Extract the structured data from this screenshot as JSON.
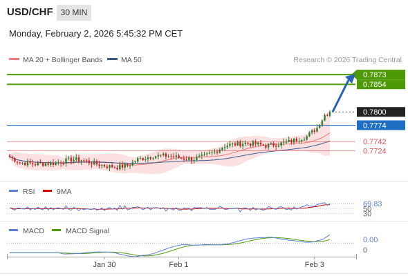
{
  "header": {
    "symbol": "USD/CHF",
    "timeframe": "30 MIN",
    "datetime": "Monday, February 2, 2026 5:45:32 PM CET"
  },
  "legend": {
    "ma20": "MA 20 + Bollinger Bands",
    "ma50": "MA 50",
    "copyright": "Research © 2026 Trading Central"
  },
  "colors": {
    "resistance": "#4e9a06",
    "current": "#222222",
    "pivot": "#1f6fc5",
    "support": "#e05050",
    "ma20": "#f07878",
    "ma50": "#3a5a8c",
    "candle_up": "#2e7d32",
    "candle_down": "#c62828",
    "rsi": "#5b7fd6",
    "rsi_ma": "#d00000",
    "macd": "#5b7fd6",
    "macd_signal": "#4e9a06",
    "arrow": "#2a62b8"
  },
  "chart_data": [
    {
      "type": "candlestick",
      "panel": "price",
      "ylim": [
        0.7668,
        0.7888
      ],
      "levels": [
        {
          "label": "0.7873",
          "value": 0.7873,
          "kind": "resistance"
        },
        {
          "label": "0.7854",
          "value": 0.7854,
          "kind": "resistance"
        },
        {
          "label": "0.7800",
          "value": 0.78,
          "kind": "current"
        },
        {
          "label": "0.7774",
          "value": 0.7774,
          "kind": "pivot"
        },
        {
          "label": "0.7742",
          "value": 0.7742,
          "kind": "support"
        },
        {
          "label": "0.7724",
          "value": 0.7724,
          "kind": "support"
        }
      ],
      "close_anchors": [
        [
          0,
          0.7712
        ],
        [
          4,
          0.7701
        ],
        [
          10,
          0.7698
        ],
        [
          18,
          0.77
        ],
        [
          24,
          0.7707
        ],
        [
          28,
          0.7706
        ],
        [
          33,
          0.7699
        ],
        [
          38,
          0.7694
        ],
        [
          42,
          0.7692
        ],
        [
          46,
          0.7695
        ],
        [
          50,
          0.7707
        ],
        [
          56,
          0.7714
        ],
        [
          62,
          0.7714
        ],
        [
          68,
          0.7709
        ],
        [
          72,
          0.7708
        ],
        [
          76,
          0.7713
        ],
        [
          80,
          0.7722
        ],
        [
          84,
          0.7734
        ],
        [
          88,
          0.7737
        ],
        [
          92,
          0.7739
        ],
        [
          96,
          0.7737
        ],
        [
          100,
          0.7734
        ],
        [
          104,
          0.7737
        ],
        [
          108,
          0.774
        ],
        [
          112,
          0.7746
        ],
        [
          116,
          0.7752
        ],
        [
          120,
          0.7769
        ],
        [
          123,
          0.7794
        ],
        [
          125,
          0.78
        ]
      ],
      "forecast": {
        "from": 0.78,
        "to": 0.7873
      }
    },
    {
      "type": "line",
      "panel": "rsi",
      "series": [
        {
          "name": "RSI"
        },
        {
          "name": "9MA"
        }
      ],
      "reference": {
        "label": "69.83",
        "value": 69.83
      },
      "levels": [
        {
          "label": "50",
          "value": 50
        },
        {
          "label": "30",
          "value": 30
        }
      ],
      "ylim": [
        20,
        90
      ]
    },
    {
      "type": "line",
      "panel": "macd",
      "series": [
        {
          "name": "MACD"
        },
        {
          "name": "MACD Signal"
        }
      ],
      "reference": {
        "label": "0.00",
        "value": 0.0
      },
      "levels": [
        {
          "label": "0",
          "value": 0
        }
      ]
    },
    {
      "type": "axis",
      "panel": "time",
      "x_ticks": [
        {
          "label": "Jan 30",
          "index": 37
        },
        {
          "label": "Feb 1",
          "index": 66
        },
        {
          "label": "Feb 3",
          "index": 119
        }
      ]
    }
  ]
}
